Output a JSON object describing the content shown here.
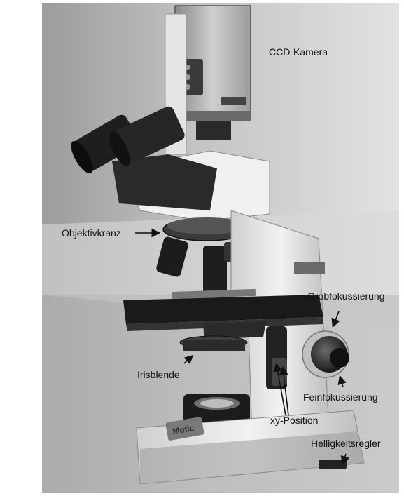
{
  "figure": {
    "type": "annotated-photo",
    "subject": "microscope",
    "brand_text": "Motic",
    "labels": {
      "ccd_camera": "CCD-Kamera",
      "objective_turret": "Objektivkranz",
      "coarse_focus": "Grobfokussierung",
      "iris_diaphragm": "Irisblende",
      "fine_focus": "Feinfokussierung",
      "xy_position": "xy-Position",
      "brightness_control": "Helligkeitsregler"
    }
  }
}
